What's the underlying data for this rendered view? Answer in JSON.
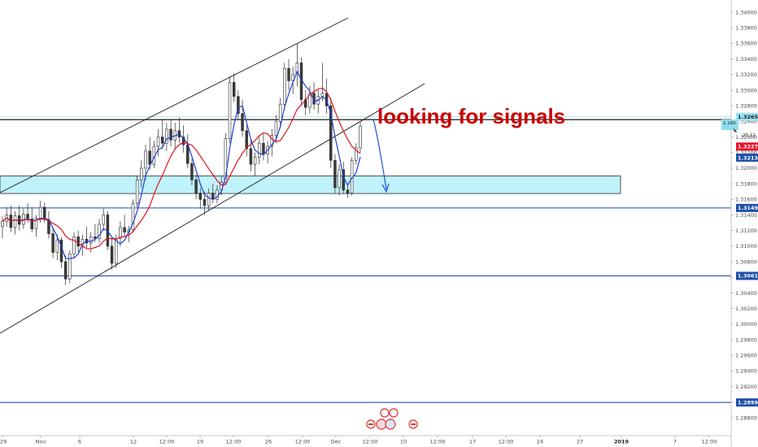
{
  "chart_data": {
    "type": "candlestick",
    "y_axis": {
      "range": [
        1.2874,
        1.3415
      ],
      "ticks": [
        "1.34000",
        "1.33800",
        "1.33600",
        "1.33400",
        "1.33200",
        "1.33000",
        "1.32800",
        "1.32600",
        "1.32400",
        "1.32200",
        "1.32000",
        "1.31800",
        "1.31600",
        "1.31400",
        "1.31200",
        "1.31000",
        "1.30800",
        "1.30600",
        "1.30400",
        "1.30200",
        "1.30000",
        "1.29800",
        "1.29600",
        "1.29400",
        "1.29200",
        "1.29000",
        "1.28800"
      ]
    },
    "x_axis": {
      "ticks": [
        "29",
        "Nov",
        "6",
        "12",
        "12:00",
        "19",
        "12:00",
        "26",
        "12:00",
        "Dec",
        "12:00",
        "10",
        "12:00",
        "17",
        "12:00",
        "24",
        "27",
        "2019",
        "7",
        "12:00"
      ],
      "bold_ticks": [
        "2019"
      ]
    },
    "horizontal_levels": [
      {
        "value": 1.32622,
        "color": "#000000"
      },
      {
        "value": 1.3149,
        "label": "1.31490",
        "color": "#1f4fa8"
      },
      {
        "value": 1.30619,
        "label": "1.30619",
        "color": "#1f4fa8"
      },
      {
        "value": 1.28996,
        "label": "1.28996",
        "color": "#1f4fa8"
      }
    ],
    "support_zone": {
      "low": 1.31675,
      "high": 1.319,
      "color": "#bff2fb"
    },
    "price_labels": [
      {
        "text": "1.32659",
        "value": 1.32659,
        "bg": "#9be3f3",
        "dark": true
      },
      {
        "text": "1.32277",
        "value": 1.32277,
        "bg": "#e8102a",
        "dark": false
      },
      {
        "text": "1.32135",
        "value": 1.32135,
        "bg": "#1f4fa8",
        "dark": false
      }
    ],
    "countdown_label": {
      "text": "1.16h",
      "sub": "25:11"
    },
    "annotation": "looking for signals",
    "candles": [
      [
        1.3125,
        1.3138,
        1.311,
        1.3132
      ],
      [
        1.3132,
        1.315,
        1.3125,
        1.314
      ],
      [
        1.314,
        1.3152,
        1.3118,
        1.3124
      ],
      [
        1.3124,
        1.3145,
        1.3115,
        1.3139
      ],
      [
        1.3139,
        1.3152,
        1.312,
        1.3128
      ],
      [
        1.3128,
        1.3148,
        1.3122,
        1.3141
      ],
      [
        1.3141,
        1.3155,
        1.313,
        1.3135
      ],
      [
        1.3135,
        1.315,
        1.3118,
        1.3122
      ],
      [
        1.3122,
        1.314,
        1.3112,
        1.3136
      ],
      [
        1.3136,
        1.3158,
        1.313,
        1.315
      ],
      [
        1.315,
        1.3156,
        1.313,
        1.3134
      ],
      [
        1.3134,
        1.3145,
        1.311,
        1.3116
      ],
      [
        1.3116,
        1.3122,
        1.3085,
        1.3092
      ],
      [
        1.3092,
        1.3115,
        1.3082,
        1.3108
      ],
      [
        1.3108,
        1.3112,
        1.3072,
        1.308
      ],
      [
        1.308,
        1.3088,
        1.305,
        1.3058
      ],
      [
        1.3058,
        1.3095,
        1.3052,
        1.309
      ],
      [
        1.309,
        1.3118,
        1.3085,
        1.3112
      ],
      [
        1.3112,
        1.312,
        1.3092,
        1.31
      ],
      [
        1.31,
        1.3115,
        1.3088,
        1.3109
      ],
      [
        1.3109,
        1.3125,
        1.3098,
        1.3104
      ],
      [
        1.3104,
        1.3118,
        1.3092,
        1.3112
      ],
      [
        1.3112,
        1.3128,
        1.3105,
        1.311
      ],
      [
        1.311,
        1.3135,
        1.3104,
        1.3128
      ],
      [
        1.3128,
        1.3148,
        1.312,
        1.314
      ],
      [
        1.314,
        1.3145,
        1.3095,
        1.31
      ],
      [
        1.31,
        1.3112,
        1.307,
        1.3078
      ],
      [
        1.3078,
        1.3115,
        1.3072,
        1.311
      ],
      [
        1.311,
        1.3132,
        1.31,
        1.3124
      ],
      [
        1.3124,
        1.314,
        1.3112,
        1.3118
      ],
      [
        1.3118,
        1.3126,
        1.3105,
        1.3121
      ],
      [
        1.3121,
        1.316,
        1.3118,
        1.3155
      ],
      [
        1.3155,
        1.319,
        1.315,
        1.3185
      ],
      [
        1.3185,
        1.321,
        1.3175,
        1.32
      ],
      [
        1.32,
        1.323,
        1.3185,
        1.3222
      ],
      [
        1.3222,
        1.324,
        1.3198,
        1.3205
      ],
      [
        1.3205,
        1.3235,
        1.32,
        1.3228
      ],
      [
        1.3228,
        1.325,
        1.3215,
        1.324
      ],
      [
        1.324,
        1.3262,
        1.3225,
        1.3232
      ],
      [
        1.3232,
        1.3258,
        1.3222,
        1.325
      ],
      [
        1.325,
        1.3262,
        1.3228,
        1.3236
      ],
      [
        1.3236,
        1.3258,
        1.3225,
        1.3248
      ],
      [
        1.3248,
        1.3265,
        1.3232,
        1.324
      ],
      [
        1.324,
        1.3255,
        1.322,
        1.323
      ],
      [
        1.323,
        1.3244,
        1.32,
        1.3206
      ],
      [
        1.3206,
        1.3212,
        1.3178,
        1.3185
      ],
      [
        1.3185,
        1.3192,
        1.316,
        1.3168
      ],
      [
        1.3168,
        1.3175,
        1.3148,
        1.316
      ],
      [
        1.316,
        1.317,
        1.314,
        1.3152
      ],
      [
        1.3152,
        1.3174,
        1.3146,
        1.3168
      ],
      [
        1.3168,
        1.318,
        1.3155,
        1.316
      ],
      [
        1.316,
        1.3178,
        1.3155,
        1.3172
      ],
      [
        1.3172,
        1.319,
        1.3165,
        1.3182
      ],
      [
        1.3182,
        1.3245,
        1.3178,
        1.3238
      ],
      [
        1.3238,
        1.3318,
        1.3232,
        1.331
      ],
      [
        1.331,
        1.3322,
        1.3285,
        1.3292
      ],
      [
        1.3292,
        1.33,
        1.3262,
        1.327
      ],
      [
        1.327,
        1.3288,
        1.324,
        1.3248
      ],
      [
        1.3248,
        1.3255,
        1.3215,
        1.3225
      ],
      [
        1.3225,
        1.3236,
        1.3196,
        1.3205
      ],
      [
        1.3205,
        1.322,
        1.319,
        1.3214
      ],
      [
        1.3214,
        1.324,
        1.3205,
        1.3232
      ],
      [
        1.3232,
        1.3244,
        1.321,
        1.3218
      ],
      [
        1.3218,
        1.3235,
        1.3206,
        1.3228
      ],
      [
        1.3228,
        1.325,
        1.3215,
        1.3242
      ],
      [
        1.3242,
        1.3268,
        1.3232,
        1.326
      ],
      [
        1.326,
        1.329,
        1.3252,
        1.3282
      ],
      [
        1.3282,
        1.3335,
        1.3275,
        1.3328
      ],
      [
        1.3328,
        1.334,
        1.33,
        1.3312
      ],
      [
        1.3312,
        1.333,
        1.3295,
        1.332
      ],
      [
        1.332,
        1.336,
        1.3305,
        1.3335
      ],
      [
        1.3335,
        1.3342,
        1.328,
        1.3288
      ],
      [
        1.3288,
        1.33,
        1.3268,
        1.3278
      ],
      [
        1.3278,
        1.3305,
        1.327,
        1.3296
      ],
      [
        1.3296,
        1.331,
        1.3275,
        1.3282
      ],
      [
        1.3282,
        1.33,
        1.327,
        1.3292
      ],
      [
        1.3292,
        1.3335,
        1.3286,
        1.3296
      ],
      [
        1.3296,
        1.3315,
        1.327,
        1.328
      ],
      [
        1.328,
        1.329,
        1.32,
        1.321
      ],
      [
        1.321,
        1.3218,
        1.3168,
        1.3175
      ],
      [
        1.3175,
        1.3205,
        1.3165,
        1.3198
      ],
      [
        1.3198,
        1.3208,
        1.3168,
        1.3172
      ],
      [
        1.3172,
        1.3178,
        1.3162,
        1.3168
      ],
      [
        1.3168,
        1.3214,
        1.3165,
        1.321
      ],
      [
        1.321,
        1.3232,
        1.3205,
        1.3226
      ],
      [
        1.3226,
        1.326,
        1.322,
        1.3254
      ]
    ]
  }
}
